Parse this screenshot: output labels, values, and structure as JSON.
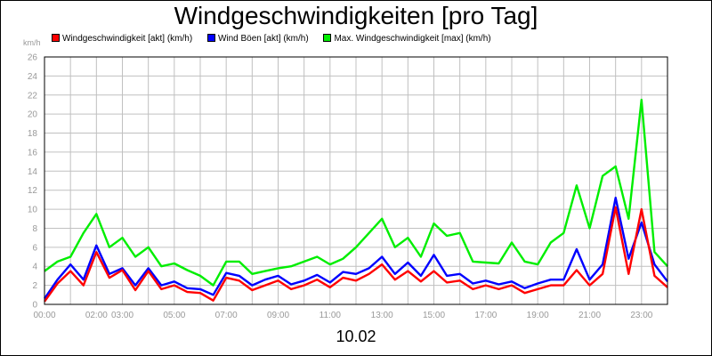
{
  "chart_data": {
    "type": "line",
    "title": "Windgeschwindigkeiten [pro Tag]",
    "xlabel": "10.02",
    "ylabel": "km/h",
    "ylim": [
      0,
      26
    ],
    "yticks": [
      0,
      2,
      4,
      6,
      8,
      10,
      12,
      14,
      16,
      18,
      20,
      22,
      24,
      26
    ],
    "xlim": [
      0,
      24
    ],
    "xticks": [
      {
        "v": 0,
        "label": "00:00"
      },
      {
        "v": 2,
        "label": "02:00"
      },
      {
        "v": 3,
        "label": "03:00"
      },
      {
        "v": 5,
        "label": "05:00"
      },
      {
        "v": 7,
        "label": "07:00"
      },
      {
        "v": 9,
        "label": "09:00"
      },
      {
        "v": 11,
        "label": "11:00"
      },
      {
        "v": 13,
        "label": "13:00"
      },
      {
        "v": 15,
        "label": "15:00"
      },
      {
        "v": 17,
        "label": "17:00"
      },
      {
        "v": 19,
        "label": "19:00"
      },
      {
        "v": 21,
        "label": "21:00"
      },
      {
        "v": 23,
        "label": "23:00"
      }
    ],
    "grid": true,
    "legend_position": "top",
    "x": [
      0,
      0.5,
      1,
      1.5,
      2,
      2.5,
      3,
      3.5,
      4,
      4.5,
      5,
      5.5,
      6,
      6.5,
      7,
      7.5,
      8,
      8.5,
      9,
      9.5,
      10,
      10.5,
      11,
      11.5,
      12,
      12.5,
      13,
      13.5,
      14,
      14.5,
      15,
      15.5,
      16,
      16.5,
      17,
      17.5,
      18,
      18.5,
      19,
      19.5,
      20,
      20.5,
      21,
      21.5,
      22,
      22.5,
      23,
      23.5,
      24
    ],
    "series": [
      {
        "name": "Windgeschwindigkeit [akt] (km/h)",
        "color": "#ff0000",
        "values": [
          0.3,
          2.2,
          3.5,
          2.0,
          5.5,
          2.8,
          3.6,
          1.5,
          3.5,
          1.6,
          2.0,
          1.3,
          1.2,
          0.4,
          2.8,
          2.5,
          1.5,
          2.0,
          2.5,
          1.6,
          2.0,
          2.6,
          1.8,
          2.8,
          2.5,
          3.2,
          4.2,
          2.6,
          3.5,
          2.4,
          3.5,
          2.3,
          2.5,
          1.6,
          2.0,
          1.6,
          2.0,
          1.2,
          1.6,
          2.0,
          2.0,
          3.6,
          2.0,
          3.2,
          10.2,
          3.2,
          10.0,
          3.0,
          1.8
        ]
      },
      {
        "name": "Wind Böen [akt] (km/h)",
        "color": "#0000ff",
        "values": [
          0.6,
          2.6,
          4.2,
          2.6,
          6.2,
          3.2,
          3.8,
          2.0,
          3.8,
          2.0,
          2.4,
          1.7,
          1.6,
          1.0,
          3.3,
          3.0,
          2.0,
          2.6,
          3.0,
          2.1,
          2.5,
          3.1,
          2.3,
          3.4,
          3.2,
          3.8,
          5.0,
          3.2,
          4.4,
          3.0,
          5.2,
          3.0,
          3.2,
          2.2,
          2.5,
          2.1,
          2.4,
          1.7,
          2.2,
          2.6,
          2.6,
          5.8,
          2.6,
          4.2,
          11.2,
          4.8,
          8.6,
          4.2,
          2.4
        ]
      },
      {
        "name": "Max. Windgeschwindigkeit [max] (km/h)",
        "color": "#00ee00",
        "values": [
          3.5,
          4.5,
          5.0,
          7.5,
          9.5,
          6.0,
          7.0,
          5.0,
          6.0,
          4.0,
          4.3,
          3.6,
          3.0,
          2.0,
          4.5,
          4.5,
          3.2,
          3.5,
          3.8,
          4.0,
          4.5,
          5.0,
          4.2,
          4.8,
          6.0,
          7.5,
          9.0,
          6.0,
          7.0,
          5.0,
          8.5,
          7.2,
          7.5,
          4.5,
          4.4,
          4.3,
          6.5,
          4.5,
          4.2,
          6.5,
          7.5,
          12.5,
          8.0,
          13.5,
          14.5,
          9.0,
          21.5,
          5.5,
          4.0
        ]
      }
    ]
  }
}
